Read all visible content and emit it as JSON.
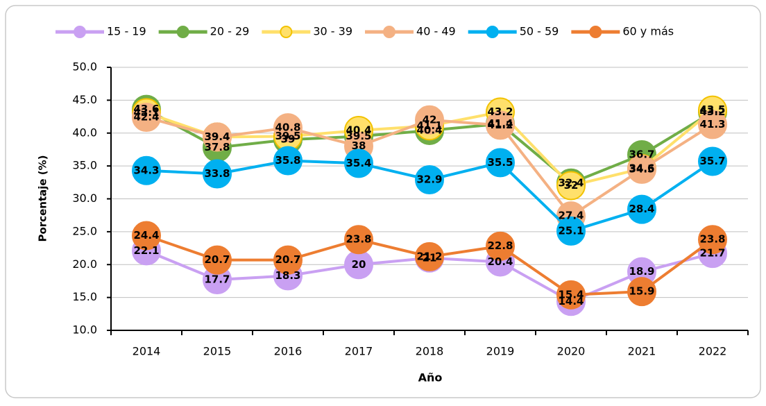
{
  "chart_data": {
    "type": "line",
    "xlabel": "Año",
    "ylabel": "Porcentaje (%)",
    "categories": [
      "2014",
      "2015",
      "2016",
      "2017",
      "2018",
      "2019",
      "2020",
      "2021",
      "2022"
    ],
    "series": [
      {
        "name": "15 - 19",
        "color": "#c9a0f2",
        "values": [
          22.1,
          17.7,
          18.3,
          20.0,
          21.0,
          20.4,
          14.4,
          18.9,
          21.7
        ]
      },
      {
        "name": "20 - 29",
        "color": "#70ad47",
        "values": [
          43.6,
          37.8,
          39.0,
          39.5,
          40.4,
          41.4,
          32.4,
          36.7,
          43.2
        ]
      },
      {
        "name": "30 - 39",
        "color": "#ffe06b",
        "values": [
          43.1,
          39.4,
          39.5,
          40.4,
          41.1,
          43.2,
          32.0,
          34.6,
          43.5
        ]
      },
      {
        "name": "40 - 49",
        "color": "#f4b183",
        "values": [
          42.4,
          39.4,
          40.8,
          38.0,
          42.0,
          41.2,
          27.4,
          34.5,
          41.3
        ]
      },
      {
        "name": "50 - 59",
        "color": "#00b0f0",
        "values": [
          34.3,
          33.8,
          35.8,
          35.4,
          32.9,
          35.5,
          25.1,
          28.4,
          35.7
        ]
      },
      {
        "name": "60 y más",
        "color": "#ed7d31",
        "values": [
          24.4,
          20.7,
          20.7,
          23.8,
          21.2,
          22.8,
          15.4,
          15.9,
          23.8
        ]
      }
    ],
    "ylim": [
      10,
      50
    ],
    "yticks": [
      {
        "value": 10,
        "label": "10.0"
      },
      {
        "value": 15,
        "label": "15.0"
      },
      {
        "value": 20,
        "label": "20.0"
      },
      {
        "value": 25,
        "label": "25.0"
      },
      {
        "value": 30,
        "label": "30.0"
      },
      {
        "value": 35,
        "label": "35.0"
      },
      {
        "value": 40,
        "label": "40.0"
      },
      {
        "value": 45,
        "label": "45.0"
      },
      {
        "value": 50,
        "label": "50.0"
      }
    ],
    "grid": true,
    "legend": "top"
  }
}
